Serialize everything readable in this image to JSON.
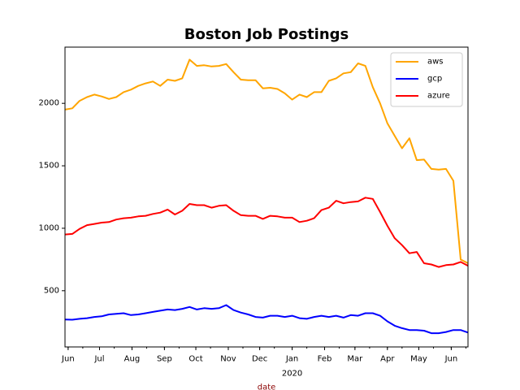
{
  "chart_data": {
    "type": "line",
    "title": "Boston Job Postings",
    "xlabel": "date",
    "ylabel": "",
    "x_start": "2019-05-29",
    "x_end": "2020-06-17",
    "ylim": [
      50,
      2450
    ],
    "y_ticks": [
      500,
      1000,
      1500,
      2000
    ],
    "x_major_ticks": [
      {
        "label": "Jun",
        "date": "2019-06-01"
      },
      {
        "label": "Jul",
        "date": "2019-07-01"
      },
      {
        "label": "Aug",
        "date": "2019-08-01"
      },
      {
        "label": "Sep",
        "date": "2019-09-01"
      },
      {
        "label": "Oct",
        "date": "2019-10-01"
      },
      {
        "label": "Nov",
        "date": "2019-11-01"
      },
      {
        "label": "Dec",
        "date": "2019-12-01"
      },
      {
        "label": "Jan",
        "date": "2020-01-01"
      },
      {
        "label": "Feb",
        "date": "2020-02-01"
      },
      {
        "label": "Mar",
        "date": "2020-03-01"
      },
      {
        "label": "Apr",
        "date": "2020-04-01"
      },
      {
        "label": "May",
        "date": "2020-05-01"
      },
      {
        "label": "Jun",
        "date": "2020-06-01"
      }
    ],
    "year_label": "2020",
    "grid": false,
    "legend_position": "top-right",
    "x": [
      "2019-05-29",
      "2019-06-05",
      "2019-06-12",
      "2019-06-19",
      "2019-06-26",
      "2019-07-03",
      "2019-07-10",
      "2019-07-17",
      "2019-07-24",
      "2019-07-31",
      "2019-08-07",
      "2019-08-14",
      "2019-08-21",
      "2019-08-28",
      "2019-09-04",
      "2019-09-11",
      "2019-09-18",
      "2019-09-25",
      "2019-10-02",
      "2019-10-09",
      "2019-10-16",
      "2019-10-23",
      "2019-10-30",
      "2019-11-06",
      "2019-11-13",
      "2019-11-20",
      "2019-11-27",
      "2019-12-04",
      "2019-12-11",
      "2019-12-18",
      "2019-12-25",
      "2020-01-01",
      "2020-01-08",
      "2020-01-15",
      "2020-01-22",
      "2020-01-29",
      "2020-02-05",
      "2020-02-12",
      "2020-02-19",
      "2020-02-26",
      "2020-03-04",
      "2020-03-11",
      "2020-03-18",
      "2020-03-25",
      "2020-04-01",
      "2020-04-08",
      "2020-04-15",
      "2020-04-22",
      "2020-04-29",
      "2020-05-06",
      "2020-05-13",
      "2020-05-20",
      "2020-05-27",
      "2020-06-03",
      "2020-06-10",
      "2020-06-17"
    ],
    "series": [
      {
        "name": "aws",
        "color": "#ffa500",
        "values": [
          1950,
          1960,
          2020,
          2050,
          2070,
          2055,
          2035,
          2050,
          2090,
          2110,
          2140,
          2160,
          2175,
          2140,
          2190,
          2180,
          2200,
          2350,
          2300,
          2305,
          2295,
          2300,
          2315,
          2250,
          2190,
          2185,
          2185,
          2120,
          2125,
          2115,
          2080,
          2030,
          2070,
          2050,
          2090,
          2090,
          2180,
          2200,
          2240,
          2250,
          2320,
          2300,
          2130,
          2000,
          1840,
          1740,
          1640,
          1720,
          1545,
          1550,
          1475,
          1470,
          1475,
          1380,
          750,
          720
        ]
      },
      {
        "name": "gcp",
        "color": "#0000ff",
        "values": [
          270,
          268,
          275,
          280,
          290,
          295,
          310,
          315,
          320,
          305,
          310,
          320,
          330,
          340,
          350,
          345,
          355,
          370,
          350,
          360,
          355,
          360,
          385,
          345,
          325,
          310,
          290,
          285,
          300,
          300,
          290,
          300,
          280,
          275,
          290,
          300,
          290,
          300,
          285,
          305,
          300,
          320,
          320,
          300,
          255,
          220,
          200,
          185,
          185,
          180,
          160,
          160,
          170,
          185,
          185,
          165
        ]
      },
      {
        "name": "azure",
        "color": "#ff0000",
        "values": [
          950,
          955,
          995,
          1025,
          1035,
          1045,
          1050,
          1070,
          1080,
          1085,
          1095,
          1100,
          1115,
          1125,
          1150,
          1110,
          1140,
          1195,
          1185,
          1185,
          1165,
          1180,
          1185,
          1140,
          1105,
          1100,
          1100,
          1075,
          1100,
          1095,
          1085,
          1085,
          1050,
          1060,
          1080,
          1145,
          1165,
          1220,
          1200,
          1210,
          1215,
          1245,
          1235,
          1130,
          1020,
          920,
          865,
          800,
          810,
          720,
          710,
          690,
          705,
          710,
          730,
          700
        ]
      }
    ]
  }
}
